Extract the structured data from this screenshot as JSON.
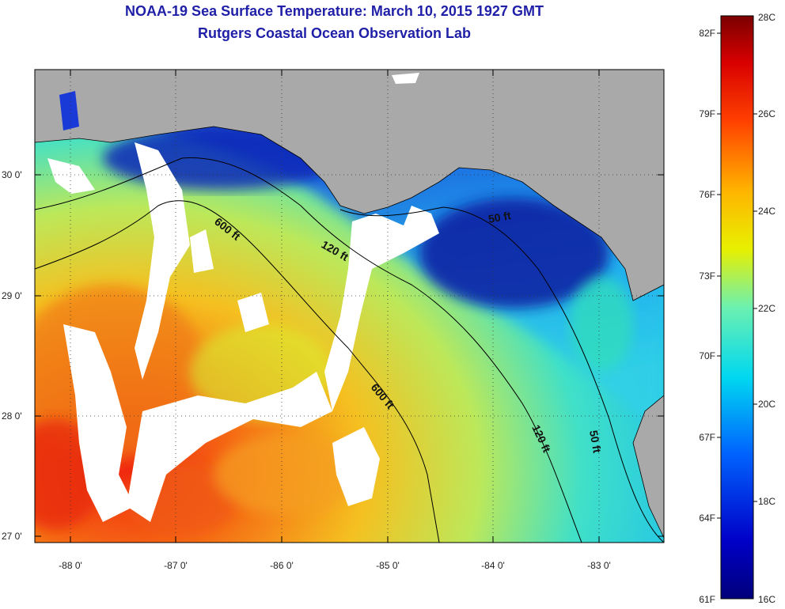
{
  "title_line1": "NOAA-19 Sea Surface Temperature:  March 10, 2015 1927 GMT",
  "title_line2": "Rutgers Coastal Ocean Observation Lab",
  "lat_labels": [
    "30 0'",
    "29 0'",
    "28 0'",
    "27 0'"
  ],
  "lon_labels": [
    "-88 0'",
    "-87 0'",
    "-86 0'",
    "-85 0'",
    "-84 0'",
    "-83 0'"
  ],
  "contour_labels": {
    "c600_north": "600 ft",
    "c120_north": "120 ft",
    "c50_north": "50 ft",
    "c600_south": "600 ft",
    "c120_south": "120 ft",
    "c50_south": "50 ft"
  },
  "colorbar": {
    "celsius": [
      "28C",
      "26C",
      "24C",
      "22C",
      "20C",
      "18C",
      "16C"
    ],
    "fahrenheit": [
      "82F",
      "79F",
      "76F",
      "73F",
      "70F",
      "67F",
      "64F",
      "61F"
    ]
  },
  "colors": {
    "title": "#1f1fa8",
    "land": "#a9a9a9",
    "cloud": "#ffffff",
    "cold": "#0a1ea8",
    "warm": "#f05a14"
  }
}
